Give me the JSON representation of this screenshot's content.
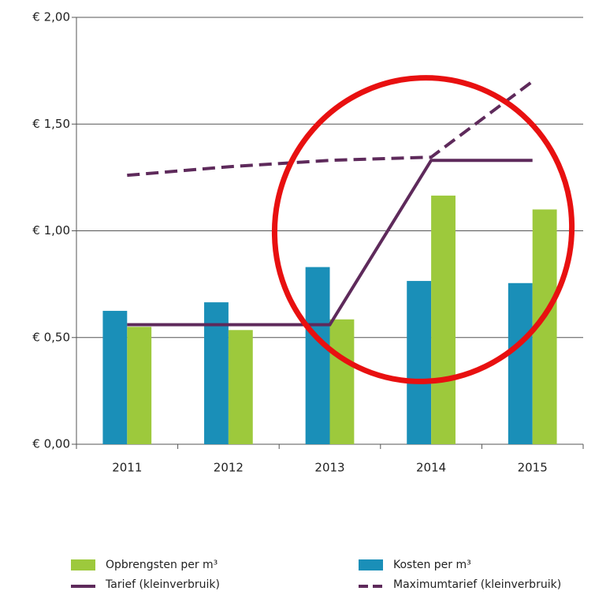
{
  "chart_data": {
    "type": "bar_line",
    "categories": [
      "2011",
      "2012",
      "2013",
      "2014",
      "2015"
    ],
    "series": [
      {
        "name": "Opbrengsten per m³",
        "color": "#9dc93c",
        "kind": "bar",
        "values": [
          0.55,
          0.535,
          0.585,
          1.165,
          1.1
        ]
      },
      {
        "name": "Kosten per m³",
        "color": "#1a8fb8",
        "kind": "bar",
        "values": [
          0.625,
          0.665,
          0.83,
          0.765,
          0.755
        ]
      },
      {
        "name": "Tarief (kleinverbruik)",
        "color": "#5e2a5b",
        "kind": "line",
        "dashed": false,
        "values": [
          0.56,
          0.56,
          0.56,
          1.33,
          1.33
        ]
      },
      {
        "name": "Maximumtarief (kleinverbruik)",
        "color": "#5e2a5b",
        "kind": "line",
        "dashed": true,
        "values": [
          1.26,
          1.3,
          1.33,
          1.345,
          1.7
        ]
      }
    ],
    "ylim": [
      0,
      2
    ],
    "yticks": [
      {
        "value": 0,
        "label": "€ 0,00"
      },
      {
        "value": 0.5,
        "label": "€ 0,50"
      },
      {
        "value": 1,
        "label": "€ 1,00"
      },
      {
        "value": 1.5,
        "label": "€ 1,50"
      },
      {
        "value": 2,
        "label": "€ 2,00"
      }
    ],
    "grid": true
  }
}
